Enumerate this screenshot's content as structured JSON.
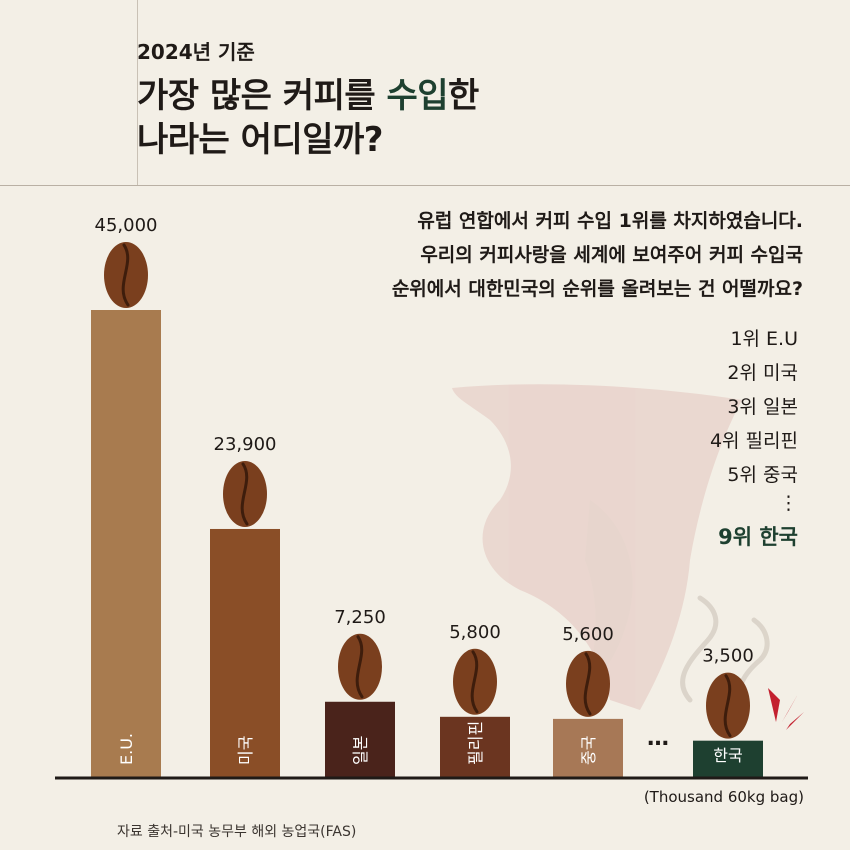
{
  "header": {
    "subtitle": "2024년 기준",
    "title_line1_pre": "가장 많은 커피를 ",
    "title_line1_accent": "수입",
    "title_line1_post": "한",
    "title_line2": "나라는 어디일까?"
  },
  "description": [
    "유럽 연합에서 커피 수입 1위를 차지하였습니다.",
    "우리의 커피사랑을 세계에 보여주어 커피 수입국",
    "순위에서 대한민국의 순위를 올려보는 건 어떨까요?"
  ],
  "ranking": {
    "items": [
      "1위 E.U",
      "2위 미국",
      "3위 일본",
      "4위 필리핀",
      "5위 중국"
    ],
    "ellipsis": "⋮",
    "highlight": "9위 한국"
  },
  "unit": "(Thousand 60kg bag)",
  "source": "자료 출처-미국 농무부 해외 농업국(FAS)",
  "colors": {
    "background": "#f3efe6",
    "accent_green": "#1e4030",
    "bean": "#7a3f1e",
    "axis": "#1f1a17"
  },
  "chart_data": {
    "type": "bar",
    "categories": [
      "E.U.",
      "미국",
      "일본",
      "필리핀",
      "중국",
      "한국"
    ],
    "values": [
      45000,
      23900,
      7250,
      5800,
      5600,
      3500
    ],
    "value_labels": [
      "45,000",
      "23,900",
      "7,250",
      "5,800",
      "5,600",
      "3,500"
    ],
    "bar_colors": [
      "#a87b4f",
      "#8a4e27",
      "#4a231b",
      "#6b3520",
      "#a77856",
      "#1e4030"
    ],
    "ellipsis_between": "…",
    "ylim": [
      0,
      45000
    ],
    "grid": false,
    "legend": "none"
  }
}
